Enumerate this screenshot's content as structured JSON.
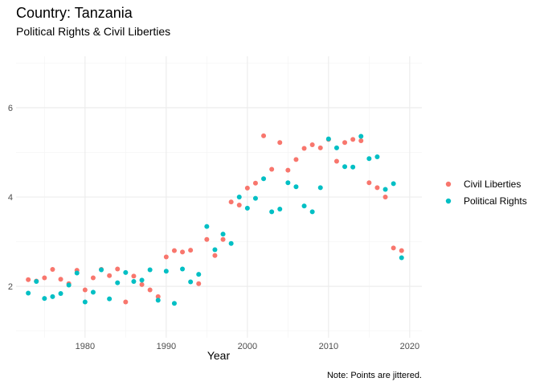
{
  "chart_data": {
    "type": "scatter",
    "title": "Country: Tanzania",
    "subtitle": "Political Rights & Civil Liberties",
    "xlabel": "Year",
    "ylabel": "",
    "caption": "Note: Points are jittered.",
    "xlim": [
      1971.5,
      2021.5
    ],
    "ylim": [
      0.85,
      7.15
    ],
    "x_ticks": [
      1980,
      1990,
      2000,
      2010,
      2020
    ],
    "y_ticks": [
      2,
      4,
      6
    ],
    "grid": true,
    "legend_position": "right",
    "series": [
      {
        "name": "Civil Liberties",
        "color": "#F8766D",
        "points": [
          [
            1973,
            2.15
          ],
          [
            1974,
            2.12
          ],
          [
            1975,
            2.19
          ],
          [
            1976,
            2.38
          ],
          [
            1977,
            2.16
          ],
          [
            1978,
            2.06
          ],
          [
            1979,
            2.36
          ],
          [
            1980,
            1.92
          ],
          [
            1981,
            2.19
          ],
          [
            1982,
            2.38
          ],
          [
            1983,
            2.24
          ],
          [
            1984,
            2.39
          ],
          [
            1985,
            1.65
          ],
          [
            1986,
            2.23
          ],
          [
            1987,
            2.04
          ],
          [
            1988,
            1.92
          ],
          [
            1989,
            1.77
          ],
          [
            1990,
            2.66
          ],
          [
            1991,
            2.8
          ],
          [
            1992,
            2.77
          ],
          [
            1993,
            2.81
          ],
          [
            1994,
            2.06
          ],
          [
            1995,
            3.05
          ],
          [
            1996,
            2.69
          ],
          [
            1997,
            3.05
          ],
          [
            1998,
            3.89
          ],
          [
            1999,
            3.82
          ],
          [
            2000,
            4.2
          ],
          [
            2001,
            4.31
          ],
          [
            2002,
            5.37
          ],
          [
            2003,
            4.62
          ],
          [
            2004,
            5.22
          ],
          [
            2005,
            4.6
          ],
          [
            2006,
            4.84
          ],
          [
            2007,
            5.09
          ],
          [
            2008,
            5.17
          ],
          [
            2009,
            5.1
          ],
          [
            2010,
            5.29
          ],
          [
            2011,
            4.8
          ],
          [
            2012,
            5.22
          ],
          [
            2013,
            5.29
          ],
          [
            2014,
            5.26
          ],
          [
            2015,
            4.32
          ],
          [
            2016,
            4.21
          ],
          [
            2017,
            4.0
          ],
          [
            2018,
            2.86
          ],
          [
            2019,
            2.8
          ]
        ]
      },
      {
        "name": "Political Rights",
        "color": "#00BFC4",
        "points": [
          [
            1973,
            1.85
          ],
          [
            1974,
            2.11
          ],
          [
            1975,
            1.73
          ],
          [
            1976,
            1.77
          ],
          [
            1977,
            1.84
          ],
          [
            1978,
            2.03
          ],
          [
            1979,
            2.3
          ],
          [
            1980,
            1.65
          ],
          [
            1981,
            1.87
          ],
          [
            1982,
            2.37
          ],
          [
            1983,
            1.72
          ],
          [
            1984,
            2.08
          ],
          [
            1985,
            2.31
          ],
          [
            1986,
            2.11
          ],
          [
            1987,
            2.14
          ],
          [
            1988,
            2.37
          ],
          [
            1989,
            1.69
          ],
          [
            1990,
            2.34
          ],
          [
            1991,
            1.62
          ],
          [
            1992,
            2.39
          ],
          [
            1993,
            2.1
          ],
          [
            1994,
            2.27
          ],
          [
            1995,
            3.34
          ],
          [
            1996,
            2.82
          ],
          [
            1997,
            3.17
          ],
          [
            1998,
            2.96
          ],
          [
            1999,
            4.0
          ],
          [
            2000,
            3.75
          ],
          [
            2001,
            3.97
          ],
          [
            2002,
            4.41
          ],
          [
            2003,
            3.67
          ],
          [
            2004,
            3.73
          ],
          [
            2005,
            4.32
          ],
          [
            2006,
            4.23
          ],
          [
            2007,
            3.8
          ],
          [
            2008,
            3.67
          ],
          [
            2009,
            4.21
          ],
          [
            2010,
            5.3
          ],
          [
            2011,
            5.1
          ],
          [
            2012,
            4.68
          ],
          [
            2013,
            4.67
          ],
          [
            2014,
            5.36
          ],
          [
            2015,
            4.86
          ],
          [
            2016,
            4.9
          ],
          [
            2017,
            4.17
          ],
          [
            2018,
            4.3
          ],
          [
            2019,
            2.64
          ]
        ]
      }
    ]
  }
}
